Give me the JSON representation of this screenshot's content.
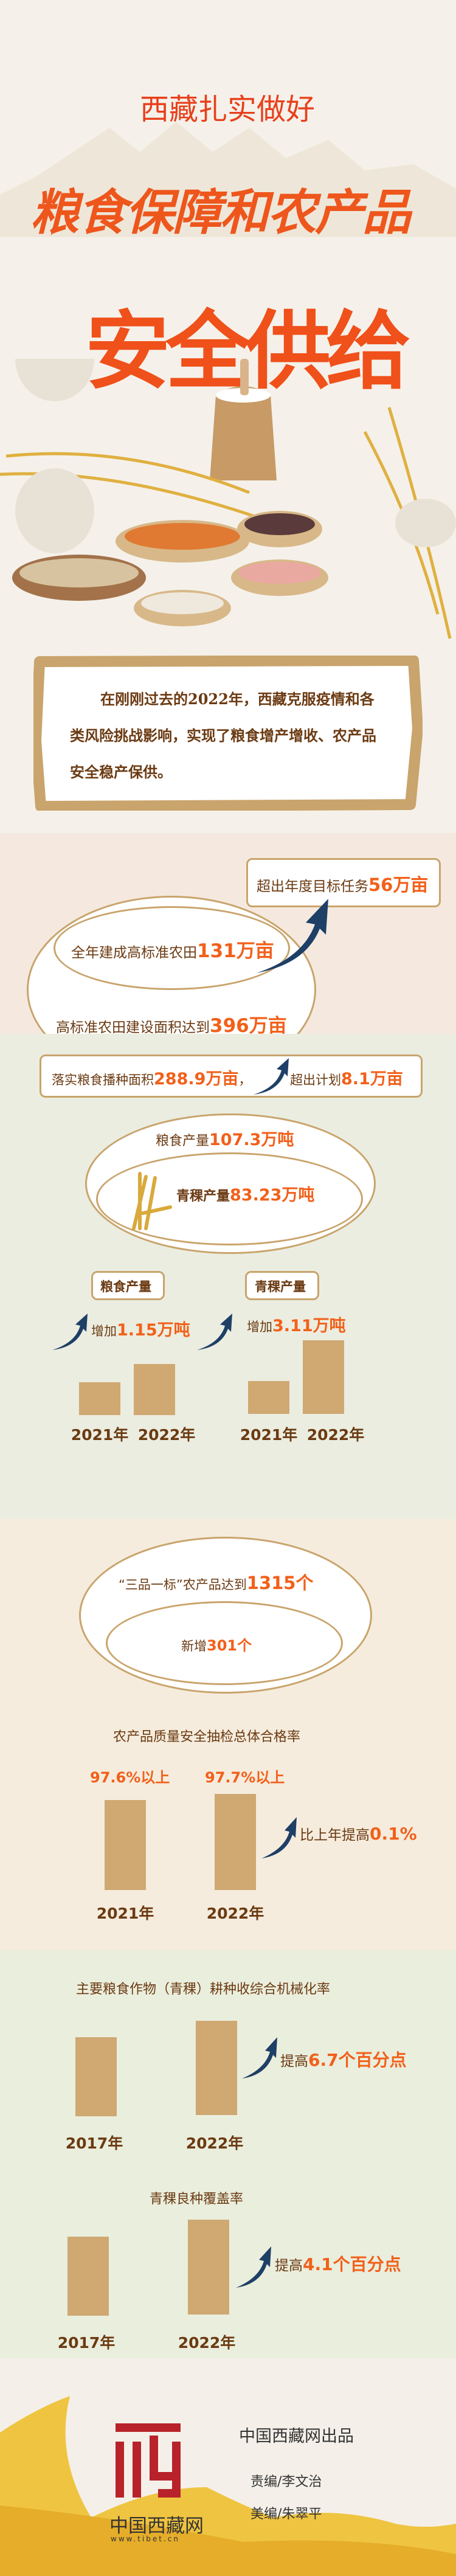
{
  "header": {
    "subtitle": "西藏扎实做好",
    "title_line1": "粮食保障和农产品",
    "title_line2": "安全供给"
  },
  "intro": {
    "text": "在刚刚过去的2022年，西藏克服疫情和各类风险挑战影响，实现了粮食增产增收、农产品安全稳产保供。"
  },
  "farmland": {
    "exceed_label": "超出年度目标任务",
    "exceed_value": "56万亩",
    "built_label": "全年建成高标准农田",
    "built_value": "131万亩",
    "total_label": "高标准农田建设面积达到",
    "total_value": "396万亩"
  },
  "grain": {
    "sown_label": "落实粮食播种面积",
    "sown_value": "288.9万亩",
    "sep": "，",
    "over_label": "超出计划",
    "over_value": "8.1万亩",
    "output_label": "粮食产量",
    "output_value": "107.3万吨",
    "barley_label": "青稞产量",
    "barley_value": "83.23万吨",
    "charts": [
      {
        "title": "粮食产量",
        "inc_label": "增加",
        "inc_value": "1.15万吨",
        "years": [
          "2021年",
          "2022年"
        ]
      },
      {
        "title": "青稞产量",
        "inc_label": "增加",
        "inc_value": "3.11万吨",
        "years": [
          "2021年",
          "2022年"
        ]
      }
    ]
  },
  "products": {
    "brand_label": "“三品一标”农产品达到",
    "brand_value": "1315个",
    "new_label": "新增",
    "new_value": "301个",
    "quality_title": "农产品质量安全抽检总体合格率",
    "bars": [
      {
        "value": "97.6%以上",
        "year": "2021年"
      },
      {
        "value": "97.7%以上",
        "year": "2022年"
      }
    ],
    "up_label": "比上年提高",
    "up_value": "0.1%"
  },
  "mechanization": {
    "title": "主要粮食作物（青稞）耕种收综合机械化率",
    "years": [
      "2017年",
      "2022年"
    ],
    "up_label": "提高",
    "up_value": "6.7个百分点"
  },
  "seed": {
    "title": "青稞良种覆盖率",
    "years": [
      "2017年",
      "2022年"
    ],
    "up_label": "提高",
    "up_value": "4.1个百分点"
  },
  "footer": {
    "logo_name": "中国西藏网",
    "logo_url": "www.tibet.cn",
    "producer": "中国西藏网出品",
    "editor": "责编/李文治",
    "designer": "美编/朱翠平"
  },
  "colors": {
    "accent": "#f2601a",
    "text": "#6b3a12",
    "bar": "#cfa872",
    "border": "#c9a46c",
    "arrow": "#1e3f66",
    "logo": "#b8222a"
  }
}
